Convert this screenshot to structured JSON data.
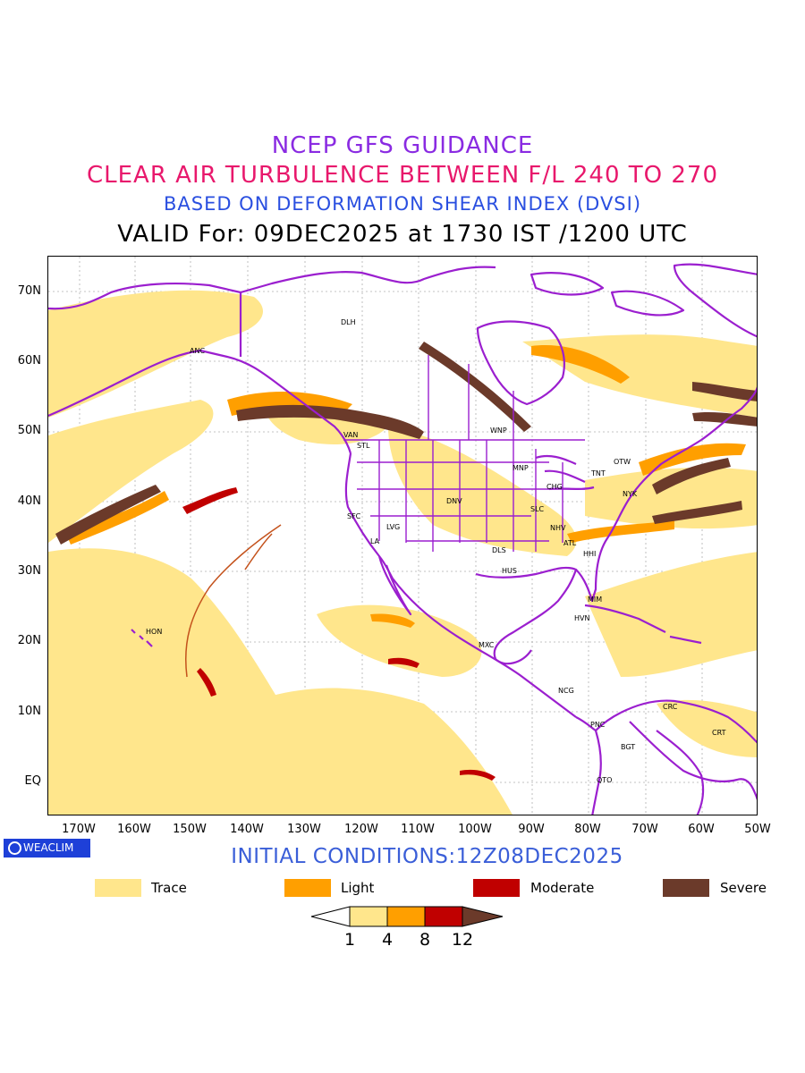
{
  "titles": {
    "line1": "NCEP GFS GUIDANCE",
    "line2": "CLEAR AIR TURBULENCE BETWEEN F/L 240 TO 270",
    "line3": "BASED ON DEFORMATION SHEAR INDEX (DVSI)",
    "line4": "VALID For: 09DEC2025 at 1730 IST /1200 UTC"
  },
  "axes": {
    "lat_labels": [
      "70N",
      "60N",
      "50N",
      "40N",
      "30N",
      "20N",
      "10N",
      "EQ"
    ],
    "lon_labels": [
      "170W",
      "160W",
      "150W",
      "140W",
      "130W",
      "120W",
      "110W",
      "100W",
      "90W",
      "80W",
      "70W",
      "60W",
      "50W"
    ]
  },
  "stations": [
    "DLH",
    "ANC",
    "VAN",
    "STL",
    "WNP",
    "MNP",
    "TNT",
    "OTW",
    "CHG",
    "NYK",
    "DNV",
    "SLC",
    "SFC",
    "LVG",
    "LA",
    "NHV",
    "ATL",
    "DLS",
    "HHI",
    "HUS",
    "MIM",
    "HVN",
    "HON",
    "MXC",
    "NCG",
    "PNC",
    "CRC",
    "CRT",
    "BGT",
    "QTO"
  ],
  "brand": {
    "label": "WEACLIM",
    "color": "#1e40d8"
  },
  "initial_conditions": "INITIAL CONDITIONS:12Z08DEC2025",
  "legend": [
    {
      "label": "Trace",
      "color": "#ffe68c"
    },
    {
      "label": "Light",
      "color": "#ff9f00"
    },
    {
      "label": "Moderate",
      "color": "#c00000"
    },
    {
      "label": "Severe",
      "color": "#6b3a2a"
    }
  ],
  "colorbar": {
    "ticks": [
      "1",
      "4",
      "8",
      "12"
    ]
  },
  "colors": {
    "boundaries": "#9b1fcf",
    "trace": "#ffe68c",
    "light": "#ff9f00",
    "moderate": "#c00000",
    "severe": "#6b3a2a"
  }
}
